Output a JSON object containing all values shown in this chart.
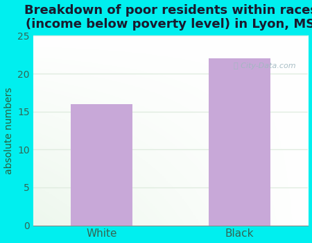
{
  "title": "Breakdown of poor residents within races\n(income below poverty level) in Lyon, MS",
  "categories": [
    "White",
    "Black"
  ],
  "values": [
    16,
    22
  ],
  "bar_color": "#c8a8d8",
  "ylabel": "absolute numbers",
  "ylim": [
    0,
    25
  ],
  "yticks": [
    0,
    5,
    10,
    15,
    20,
    25
  ],
  "background_outer": "#00efef",
  "background_inner_topleft": "#e8f5e8",
  "background_inner_topright": "#f0f8f8",
  "background_inner_bottomleft": "#d8f0d8",
  "background_inner_bottomright": "#e8f5f5",
  "title_fontsize": 13,
  "title_fontweight": "bold",
  "title_color": "#1a1a2e",
  "axis_label_color": "#2a6040",
  "tick_color": "#336655",
  "grid_color": "#e0ece0",
  "watermark_color": "#a0b8c0",
  "bar_width": 0.45
}
